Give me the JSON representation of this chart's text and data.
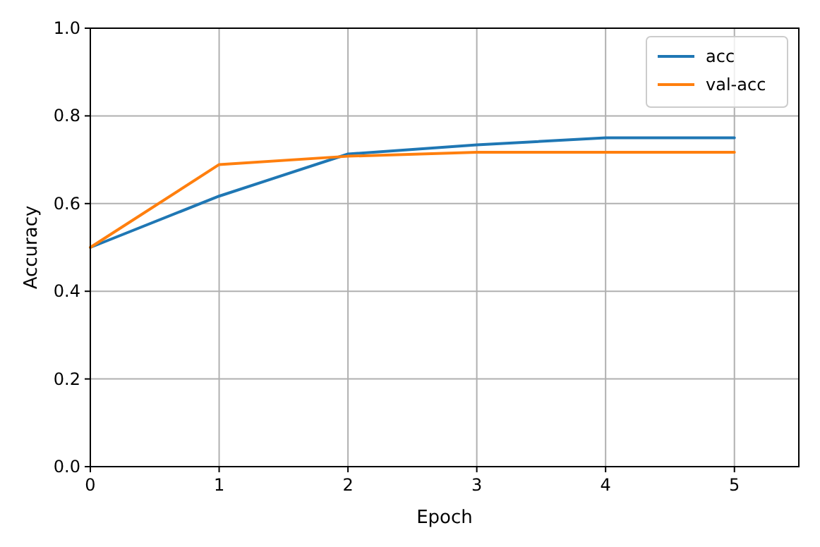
{
  "chart_data": {
    "type": "line",
    "xlabel": "Epoch",
    "ylabel": "Accuracy",
    "x": [
      0,
      1,
      2,
      3,
      4,
      5
    ],
    "series": [
      {
        "name": "acc",
        "color": "#1f77b4",
        "values": [
          0.5,
          0.617,
          0.713,
          0.734,
          0.75,
          0.75
        ]
      },
      {
        "name": "val-acc",
        "color": "#ff7f0e",
        "values": [
          0.5,
          0.689,
          0.708,
          0.717,
          0.717,
          0.717
        ]
      }
    ],
    "xlim": [
      0,
      5.5
    ],
    "xticks": [
      0,
      1,
      2,
      3,
      4,
      5
    ],
    "ylim": [
      0,
      1
    ],
    "yticks": [
      {
        "value": 0,
        "label": "0.0"
      },
      {
        "value": 0.2,
        "label": "0.2"
      },
      {
        "value": 0.4,
        "label": "0.4"
      },
      {
        "value": 0.6,
        "label": "0.6"
      },
      {
        "value": 0.8,
        "label": "0.8"
      },
      {
        "value": 1,
        "label": "1.0"
      }
    ],
    "grid": true,
    "legend": "top right",
    "marker": "none",
    "line_style": "solid"
  }
}
